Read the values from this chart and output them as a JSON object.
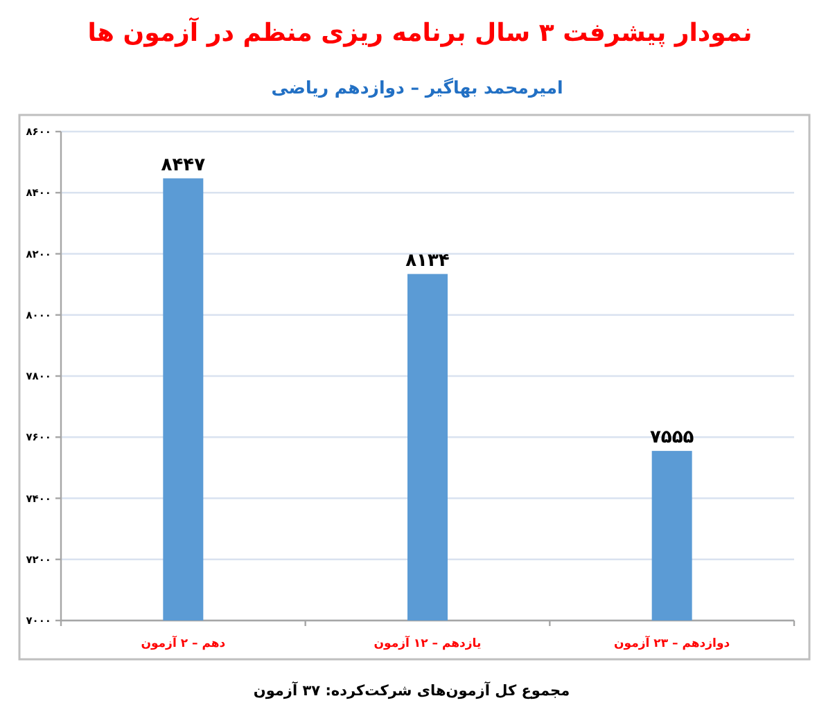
{
  "chart_data": {
    "type": "bar",
    "title": "نمودار پیشرفت ۳ سال برنامه ریزی منظم در آزمون ها",
    "subtitle": "امیرمحمد بهاگیر – دوازدهم ریاضی",
    "categories": [
      "دهم – ۲ آزمون",
      "یازدهم – ۱۲ آزمون",
      "دوازدهم – ۲۳ آزمون"
    ],
    "values": [
      8447,
      8134,
      7555
    ],
    "value_labels": [
      "۸۴۴۷",
      "۸۱۳۴",
      "۷۵۵۵"
    ],
    "color": "#5b9bd5",
    "ylim": [
      7000,
      8600
    ],
    "yticks": [
      {
        "value": 7000,
        "label": "۷۰۰۰"
      },
      {
        "value": 7200,
        "label": "۷۲۰۰"
      },
      {
        "value": 7400,
        "label": "۷۴۰۰"
      },
      {
        "value": 7600,
        "label": "۷۶۰۰"
      },
      {
        "value": 7800,
        "label": "۷۸۰۰"
      },
      {
        "value": 8000,
        "label": "۸۰۰۰"
      },
      {
        "value": 8200,
        "label": "۸۲۰۰"
      },
      {
        "value": 8400,
        "label": "۸۴۰۰"
      },
      {
        "value": 8600,
        "label": "۸۶۰۰"
      }
    ],
    "grid": "y",
    "annotations": [
      "مجموع کل آزمون‌های شرکت‌کرده: ۳۷ آزمون"
    ]
  }
}
